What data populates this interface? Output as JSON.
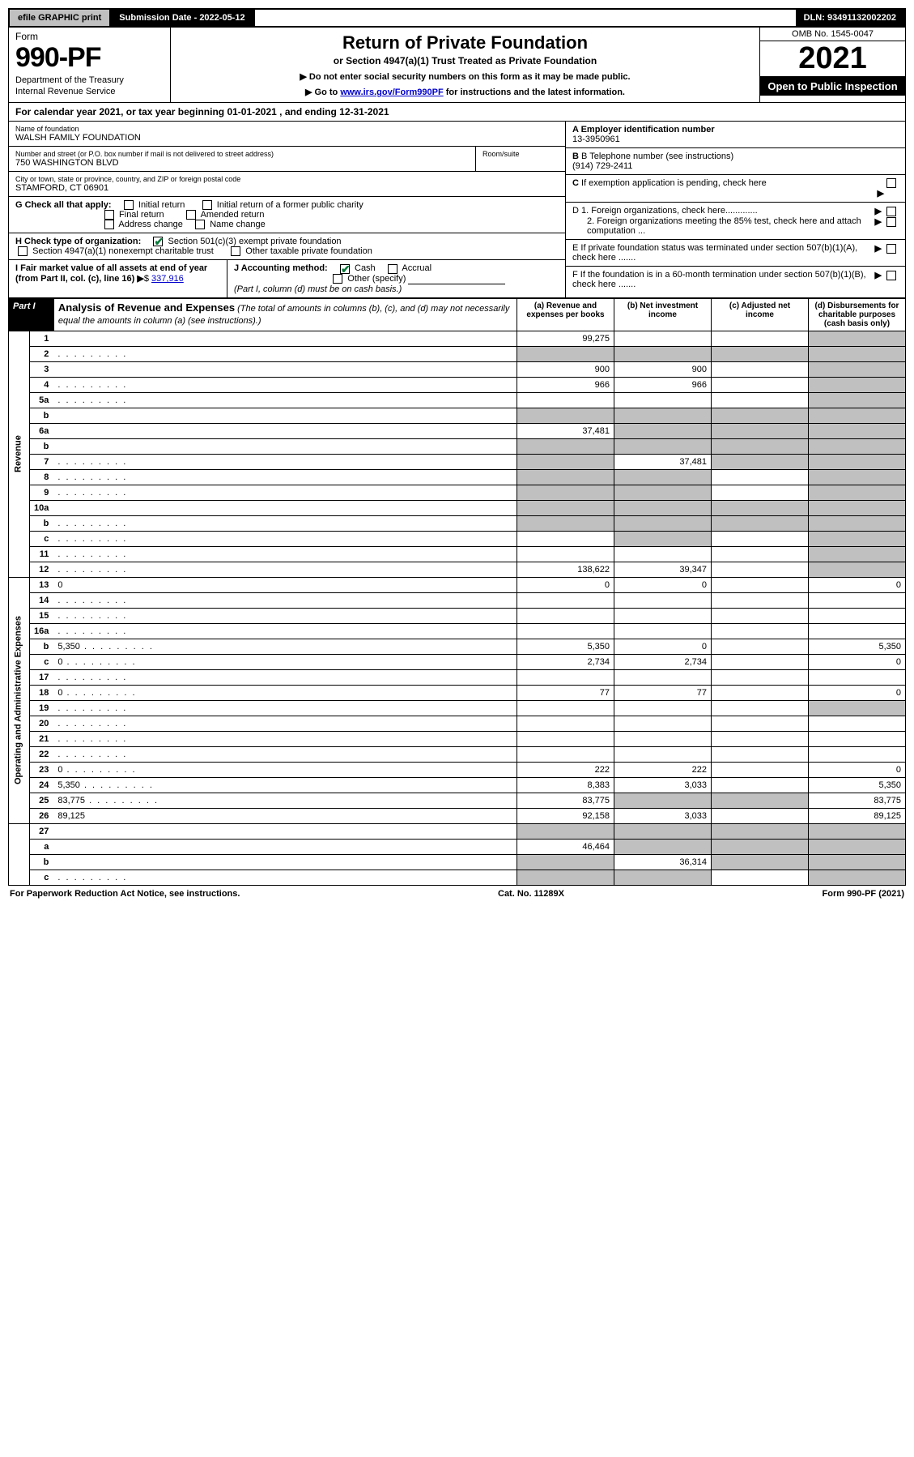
{
  "topbar": {
    "efile": "efile GRAPHIC print",
    "submission": "Submission Date - 2022-05-12",
    "dln": "DLN: 93491132002202"
  },
  "header": {
    "form_word": "Form",
    "form_no": "990-PF",
    "dept": "Department of the Treasury",
    "irs": "Internal Revenue Service",
    "title": "Return of Private Foundation",
    "subtitle": "or Section 4947(a)(1) Trust Treated as Private Foundation",
    "note1": "▶ Do not enter social security numbers on this form as it may be made public.",
    "note2_prefix": "▶ Go to ",
    "note2_link": "www.irs.gov/Form990PF",
    "note2_suffix": " for instructions and the latest information.",
    "omb": "OMB No. 1545-0047",
    "year": "2021",
    "open": "Open to Public Inspection"
  },
  "calendar": "For calendar year 2021, or tax year beginning 01-01-2021                          , and ending 12-31-2021",
  "info": {
    "name_lbl": "Name of foundation",
    "name_val": "WALSH FAMILY FOUNDATION",
    "addr_lbl": "Number and street (or P.O. box number if mail is not delivered to street address)",
    "room_lbl": "Room/suite",
    "addr_val": "750 WASHINGTON BLVD",
    "city_lbl": "City or town, state or province, country, and ZIP or foreign postal code",
    "city_val": "STAMFORD, CT  06901",
    "A_lbl": "A Employer identification number",
    "A_val": "13-3950961",
    "B_lbl": "B Telephone number (see instructions)",
    "B_val": "(914) 729-2411",
    "C_lbl": "C If exemption application is pending, check here",
    "D1_lbl": "D 1. Foreign organizations, check here.............",
    "D2_lbl": "2. Foreign organizations meeting the 85% test, check here and attach computation ...",
    "E_lbl": "E  If private foundation status was terminated under section 507(b)(1)(A), check here .......",
    "F_lbl": "F  If the foundation is in a 60-month termination under section 507(b)(1)(B), check here .......",
    "G_lbl": "G Check all that apply:",
    "G_opts": [
      "Initial return",
      "Initial return of a former public charity",
      "Final return",
      "Amended return",
      "Address change",
      "Name change"
    ],
    "H_lbl": "H Check type of organization:",
    "H_opt1": "Section 501(c)(3) exempt private foundation",
    "H_opt2": "Section 4947(a)(1) nonexempt charitable trust",
    "H_opt3": "Other taxable private foundation",
    "I_lbl": "I Fair market value of all assets at end of year (from Part II, col. (c), line 16)",
    "I_val": "337,916",
    "J_lbl": "J Accounting method:",
    "J_cash": "Cash",
    "J_accrual": "Accrual",
    "J_other": "Other (specify)",
    "J_note": "(Part I, column (d) must be on cash basis.)"
  },
  "part1": {
    "tag": "Part I",
    "title": "Analysis of Revenue and Expenses",
    "title_ital": " (The total of amounts in columns (b), (c), and (d) may not necessarily equal the amounts in column (a) (see instructions).)",
    "cols": {
      "a": "(a)    Revenue and expenses per books",
      "b": "(b)    Net investment income",
      "c": "(c)    Adjusted net income",
      "d": "(d)    Disbursements for charitable purposes (cash basis only)"
    }
  },
  "sections": {
    "revenue": "Revenue",
    "opex": "Operating and Administrative Expenses"
  },
  "rows": [
    {
      "n": "1",
      "d": "",
      "a": "99,275",
      "b": "",
      "c": "",
      "shade": [
        "d"
      ]
    },
    {
      "n": "2",
      "d": "",
      "dots": true,
      "a": "",
      "b": "",
      "c": "",
      "shade": [
        "a",
        "b",
        "c",
        "d"
      ]
    },
    {
      "n": "3",
      "d": "",
      "a": "900",
      "b": "900",
      "c": "",
      "shade": [
        "d"
      ]
    },
    {
      "n": "4",
      "d": "",
      "dots": true,
      "a": "966",
      "b": "966",
      "c": "",
      "shade": [
        "d"
      ]
    },
    {
      "n": "5a",
      "d": "",
      "dots": true,
      "a": "",
      "b": "",
      "c": "",
      "shade": [
        "d"
      ]
    },
    {
      "n": "b",
      "d": "",
      "a": "",
      "b": "",
      "c": "",
      "shade": [
        "a",
        "b",
        "c",
        "d"
      ]
    },
    {
      "n": "6a",
      "d": "",
      "a": "37,481",
      "b": "",
      "c": "",
      "shade": [
        "b",
        "c",
        "d"
      ]
    },
    {
      "n": "b",
      "d": "",
      "a": "",
      "b": "",
      "c": "",
      "shade": [
        "a",
        "b",
        "c",
        "d"
      ]
    },
    {
      "n": "7",
      "d": "",
      "dots": true,
      "a": "",
      "b": "37,481",
      "c": "",
      "shade": [
        "a",
        "c",
        "d"
      ]
    },
    {
      "n": "8",
      "d": "",
      "dots": true,
      "a": "",
      "b": "",
      "c": "",
      "shade": [
        "a",
        "b",
        "d"
      ]
    },
    {
      "n": "9",
      "d": "",
      "dots": true,
      "a": "",
      "b": "",
      "c": "",
      "shade": [
        "a",
        "b",
        "d"
      ]
    },
    {
      "n": "10a",
      "d": "",
      "a": "",
      "b": "",
      "c": "",
      "shade": [
        "a",
        "b",
        "c",
        "d"
      ]
    },
    {
      "n": "b",
      "d": "",
      "dots": true,
      "inline_box": true,
      "a": "",
      "b": "",
      "c": "",
      "shade": [
        "a",
        "b",
        "c",
        "d"
      ]
    },
    {
      "n": "c",
      "d": "",
      "dots": true,
      "a": "",
      "b": "",
      "c": "",
      "shade": [
        "b",
        "d"
      ]
    },
    {
      "n": "11",
      "d": "",
      "dots": true,
      "a": "",
      "b": "",
      "c": "",
      "shade": [
        "d"
      ]
    },
    {
      "n": "12",
      "d": "",
      "dots": true,
      "a": "138,622",
      "b": "39,347",
      "c": "",
      "shade": [
        "d"
      ]
    }
  ],
  "exp_rows": [
    {
      "n": "13",
      "d": "0",
      "a": "0",
      "b": "0",
      "c": ""
    },
    {
      "n": "14",
      "d": "",
      "dots": true,
      "a": "",
      "b": "",
      "c": ""
    },
    {
      "n": "15",
      "d": "",
      "dots": true,
      "a": "",
      "b": "",
      "c": ""
    },
    {
      "n": "16a",
      "d": "",
      "dots": true,
      "a": "",
      "b": "",
      "c": ""
    },
    {
      "n": "b",
      "d": "5,350",
      "dots": true,
      "a": "5,350",
      "b": "0",
      "c": ""
    },
    {
      "n": "c",
      "d": "0",
      "dots": true,
      "a": "2,734",
      "b": "2,734",
      "c": ""
    },
    {
      "n": "17",
      "d": "",
      "dots": true,
      "a": "",
      "b": "",
      "c": ""
    },
    {
      "n": "18",
      "d": "0",
      "dots": true,
      "a": "77",
      "b": "77",
      "c": ""
    },
    {
      "n": "19",
      "d": "",
      "dots": true,
      "a": "",
      "b": "",
      "c": "",
      "shade": [
        "d"
      ]
    },
    {
      "n": "20",
      "d": "",
      "dots": true,
      "a": "",
      "b": "",
      "c": ""
    },
    {
      "n": "21",
      "d": "",
      "dots": true,
      "a": "",
      "b": "",
      "c": ""
    },
    {
      "n": "22",
      "d": "",
      "dots": true,
      "a": "",
      "b": "",
      "c": ""
    },
    {
      "n": "23",
      "d": "0",
      "dots": true,
      "a": "222",
      "b": "222",
      "c": ""
    },
    {
      "n": "24",
      "d": "5,350",
      "dots": true,
      "a": "8,383",
      "b": "3,033",
      "c": ""
    },
    {
      "n": "25",
      "d": "83,775",
      "dots": true,
      "a": "83,775",
      "b": "",
      "c": "",
      "shade": [
        "b",
        "c"
      ]
    },
    {
      "n": "26",
      "d": "89,125",
      "a": "92,158",
      "b": "3,033",
      "c": ""
    }
  ],
  "bottom_rows": [
    {
      "n": "27",
      "d": "",
      "a": "",
      "b": "",
      "c": "",
      "shade": [
        "a",
        "b",
        "c",
        "d"
      ]
    },
    {
      "n": "a",
      "d": "",
      "a": "46,464",
      "b": "",
      "c": "",
      "shade": [
        "b",
        "c",
        "d"
      ]
    },
    {
      "n": "b",
      "d": "",
      "a": "",
      "b": "36,314",
      "c": "",
      "shade": [
        "a",
        "c",
        "d"
      ]
    },
    {
      "n": "c",
      "d": "",
      "dots": true,
      "a": "",
      "b": "",
      "c": "",
      "shade": [
        "a",
        "b",
        "d"
      ]
    }
  ],
  "footer": {
    "left": "For Paperwork Reduction Act Notice, see instructions.",
    "mid": "Cat. No. 11289X",
    "right": "Form 990-PF (2021)"
  }
}
